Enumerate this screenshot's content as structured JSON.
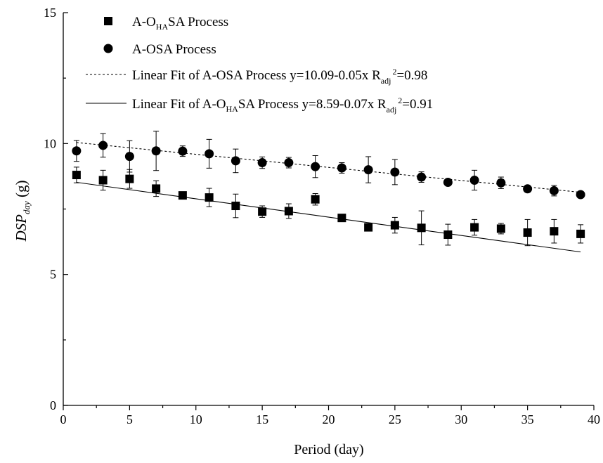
{
  "chart_data": {
    "type": "scatter",
    "xlabel": "Period (day)",
    "ylabel": {
      "main": "DSP",
      "sub": "day",
      "unit": " (g)"
    },
    "xlim": [
      0,
      40
    ],
    "ylim": [
      0,
      15
    ],
    "xticks": [
      0,
      5,
      10,
      15,
      20,
      25,
      30,
      35,
      40
    ],
    "yticks": [
      0,
      5,
      10,
      15
    ],
    "grid": false,
    "legend_position": "top-left",
    "series": [
      {
        "name": {
          "pre": "A-O",
          "sub": "HA",
          "post": "SA Process"
        },
        "marker": "square",
        "color": "#000000",
        "x": [
          1,
          3,
          5,
          7,
          9,
          11,
          13,
          15,
          17,
          19,
          21,
          23,
          25,
          27,
          29,
          31,
          33,
          35,
          37,
          39
        ],
        "y": [
          8.8,
          8.6,
          8.65,
          8.28,
          8.02,
          7.94,
          7.62,
          7.4,
          7.42,
          7.87,
          7.16,
          6.8,
          6.88,
          6.78,
          6.52,
          6.8,
          6.75,
          6.6,
          6.65,
          6.55
        ],
        "err": [
          0.3,
          0.38,
          0.36,
          0.3,
          0.12,
          0.35,
          0.45,
          0.22,
          0.28,
          0.22,
          0.1,
          0.12,
          0.3,
          0.65,
          0.4,
          0.3,
          0.2,
          0.5,
          0.45,
          0.35
        ]
      },
      {
        "name": {
          "pre": "A-OSA Process",
          "sub": "",
          "post": ""
        },
        "marker": "circle",
        "color": "#000000",
        "x": [
          1,
          3,
          5,
          7,
          9,
          11,
          13,
          15,
          17,
          19,
          21,
          23,
          25,
          27,
          29,
          31,
          33,
          35,
          37,
          39
        ],
        "y": [
          9.72,
          9.93,
          9.51,
          9.72,
          9.71,
          9.61,
          9.34,
          9.27,
          9.27,
          9.12,
          9.07,
          9.0,
          8.91,
          8.72,
          8.52,
          8.6,
          8.5,
          8.27,
          8.2,
          8.05
        ],
        "err": [
          0.4,
          0.45,
          0.6,
          0.75,
          0.2,
          0.55,
          0.45,
          0.22,
          0.2,
          0.42,
          0.2,
          0.5,
          0.48,
          0.2,
          0.05,
          0.38,
          0.22,
          0.08,
          0.2,
          0.05
        ]
      }
    ],
    "fits": [
      {
        "label_pre": "Linear Fit of A-OSA Process y=10.09-0.05x R",
        "label_sub": "adj",
        "label_sup": "2",
        "label_post": "=0.98",
        "style": "dashed",
        "intercept": 10.09,
        "slope": -0.05,
        "x_range": [
          1,
          39
        ]
      },
      {
        "label_pre": "Linear Fit of A-O",
        "label_sub1": "HA",
        "label_mid": "SA Process y=8.59-0.07x R",
        "label_sub": "adj",
        "label_sup": "2",
        "label_post": "=0.91",
        "style": "solid",
        "intercept": 8.59,
        "slope": -0.07,
        "x_range": [
          1,
          39
        ]
      }
    ]
  }
}
